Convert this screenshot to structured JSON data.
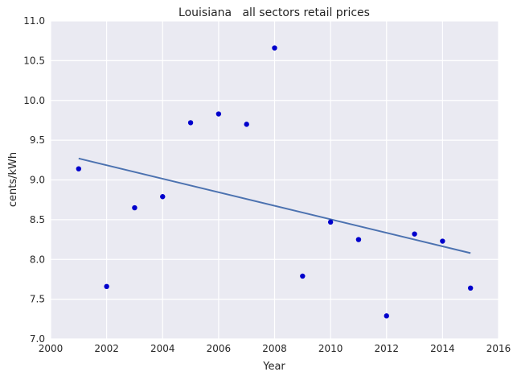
{
  "chart_data": {
    "type": "scatter",
    "title": "Louisiana   all sectors retail prices",
    "xlabel": "Year",
    "ylabel": "cents/kWh",
    "xlim": [
      2000,
      2016
    ],
    "ylim": [
      7.0,
      11.0
    ],
    "xticks": [
      "2000",
      "2002",
      "2004",
      "2006",
      "2008",
      "2010",
      "2012",
      "2014",
      "2016"
    ],
    "yticks": [
      "7.0",
      "7.5",
      "8.0",
      "8.5",
      "9.0",
      "9.5",
      "10.0",
      "10.5",
      "11.0"
    ],
    "grid": true,
    "series": [
      {
        "type": "scatter",
        "x": [
          2001,
          2002,
          2003,
          2004,
          2005,
          2006,
          2007,
          2008,
          2009,
          2010,
          2011,
          2012,
          2013,
          2014,
          2015
        ],
        "y": [
          9.14,
          7.66,
          8.65,
          8.79,
          9.72,
          9.83,
          9.7,
          10.66,
          7.79,
          8.47,
          8.25,
          7.29,
          8.32,
          8.23,
          7.64
        ]
      },
      {
        "type": "line",
        "x": [
          2001,
          2015
        ],
        "y": [
          9.27,
          8.08
        ]
      }
    ],
    "colors": {
      "plot_background": "#eaeaf2",
      "grid": "#ffffff",
      "points": "#0000cc",
      "trend_line": "#4c72b0"
    }
  }
}
